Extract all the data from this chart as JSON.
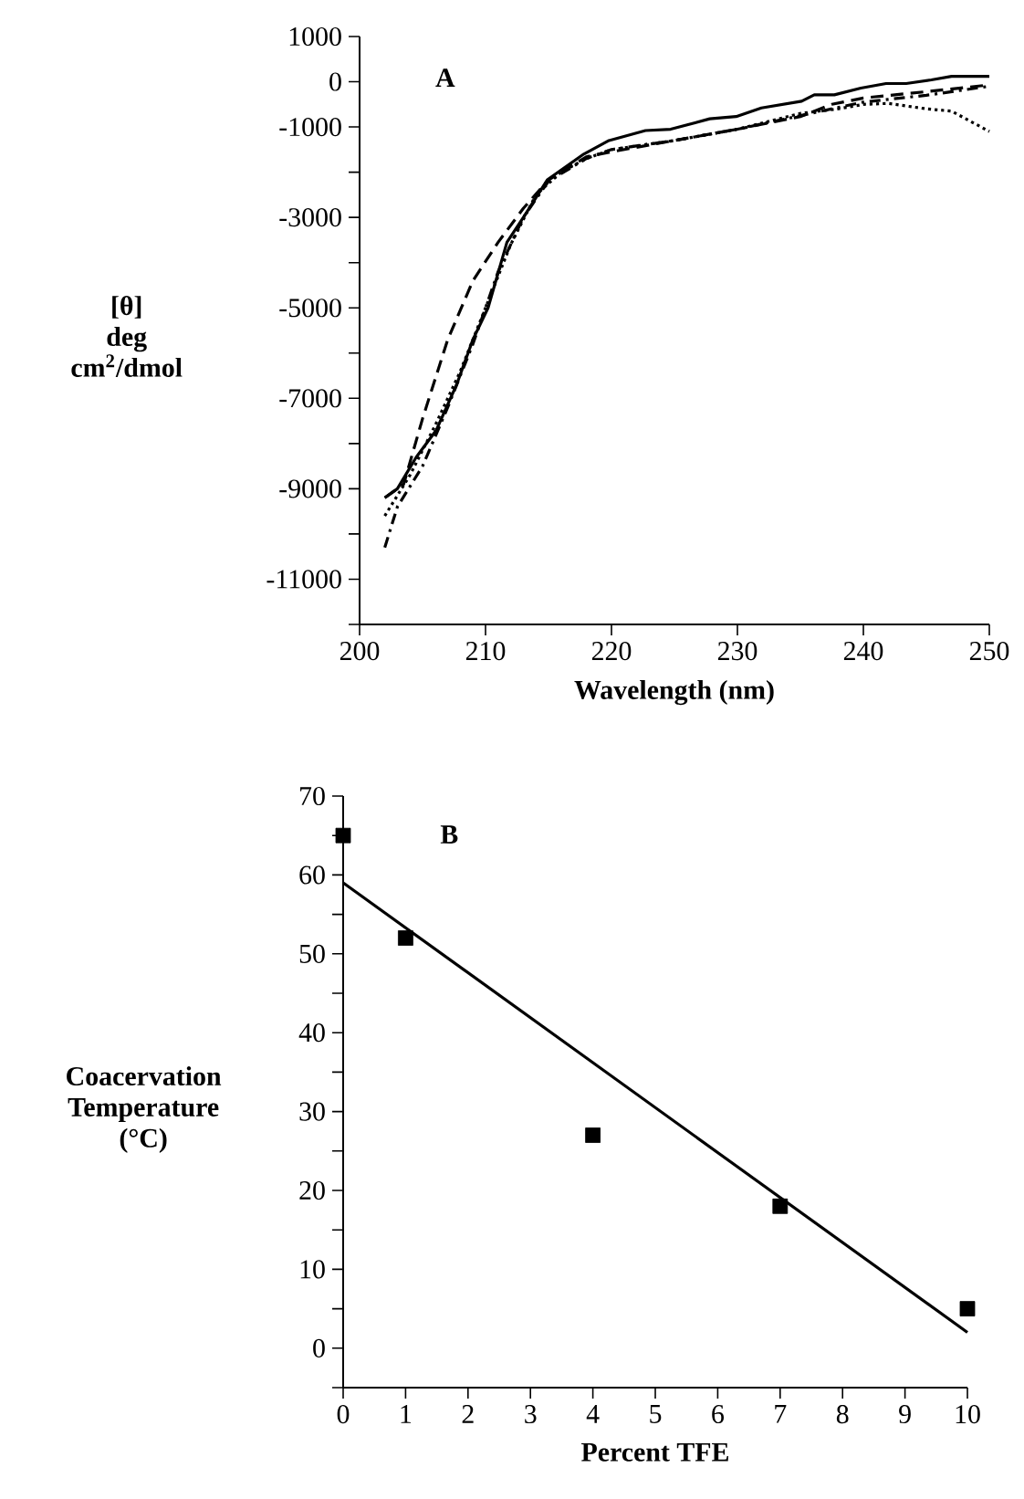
{
  "chart_data": [
    {
      "type": "line",
      "xlabel": "Wavelength (nm)",
      "ylabel": "[θ]\ndeg cm$^{2}$/dmol",
      "annotations": [
        "A"
      ],
      "xlim": [
        200,
        250
      ],
      "ylim": [
        -12000,
        1000
      ],
      "xticks": [
        200,
        210,
        220,
        230,
        240,
        250
      ],
      "yticks": [
        {
          "value": -12000,
          "label": null
        },
        -11000,
        {
          "value": -10000,
          "label": null
        },
        -9000,
        {
          "value": -8000,
          "label": null
        },
        -7000,
        {
          "value": -6000,
          "label": null
        },
        -5000,
        {
          "value": -4000,
          "label": null
        },
        -3000,
        {
          "value": -2000,
          "label": null
        },
        -1000,
        0,
        1000
      ],
      "series": [
        {
          "color": "#000000",
          "line_style": "solid",
          "x": [
            202,
            203,
            204.5,
            206.1,
            207.7,
            209,
            210.2,
            211.7,
            213.1,
            214.9,
            217.8,
            219.8,
            222.7,
            224.7,
            227.8,
            229.9,
            231.9,
            235.1,
            236.1,
            237.7,
            239.8,
            241.8,
            243.4,
            245.4,
            247,
            250
          ],
          "values": [
            -9200,
            -9000,
            -8300,
            -7700,
            -6700,
            -5700,
            -5000,
            -3550,
            -2960,
            -2170,
            -1600,
            -1300,
            -1080,
            -1050,
            -820,
            -770,
            -580,
            -430,
            -290,
            -290,
            -140,
            -40,
            -40,
            40,
            120,
            120
          ]
        },
        {
          "color": "#000000",
          "line_style": "dashed",
          "x": [
            202,
            203.5,
            205,
            207,
            209,
            211,
            213,
            215,
            218,
            220,
            225,
            230,
            235,
            237.5,
            240,
            245,
            250
          ],
          "values": [
            -9200,
            -8900,
            -7450,
            -5700,
            -4400,
            -3550,
            -2800,
            -2170,
            -1660,
            -1550,
            -1300,
            -1050,
            -770,
            -500,
            -360,
            -220,
            -70
          ]
        },
        {
          "color": "#000000",
          "line_style": "dotted",
          "x": [
            202,
            204,
            206,
            208,
            210,
            212,
            214,
            216,
            218,
            220,
            225,
            230,
            235,
            238,
            240,
            242,
            245,
            247,
            250
          ],
          "values": [
            -9600,
            -8700,
            -7600,
            -6400,
            -5000,
            -3600,
            -2500,
            -2000,
            -1700,
            -1500,
            -1300,
            -1050,
            -700,
            -600,
            -500,
            -480,
            -600,
            -650,
            -1100
          ]
        },
        {
          "color": "#000000",
          "line_style": "dashdot",
          "x": [
            202,
            203,
            205,
            207,
            209,
            211,
            213,
            215,
            218,
            220,
            225,
            230,
            235,
            240,
            245,
            250
          ],
          "values": [
            -10300,
            -9400,
            -8500,
            -7200,
            -5800,
            -4200,
            -3000,
            -2200,
            -1700,
            -1500,
            -1300,
            -1050,
            -750,
            -450,
            -300,
            -100
          ]
        }
      ]
    },
    {
      "type": "scatter",
      "xlabel": "Percent TFE",
      "ylabel": "Coacervation Temperature (°C)",
      "annotations": [
        "B"
      ],
      "xlim": [
        0,
        10
      ],
      "ylim": [
        -5,
        70
      ],
      "xticks": [
        0,
        1,
        2,
        3,
        4,
        5,
        6,
        7,
        8,
        9,
        10
      ],
      "yticks": [
        {
          "value": -5,
          "label": null
        },
        0,
        {
          "value": 5,
          "label": null
        },
        10,
        {
          "value": 15,
          "label": null
        },
        20,
        {
          "value": 25,
          "label": null
        },
        30,
        {
          "value": 35,
          "label": null
        },
        40,
        {
          "value": 45,
          "label": null
        },
        50,
        {
          "value": 55,
          "label": null
        },
        60,
        {
          "value": 65,
          "label": null
        },
        70
      ],
      "series": [
        {
          "type": "scatter",
          "color": "#000000",
          "marker": "square",
          "x": [
            0,
            1,
            4,
            7,
            10
          ],
          "values": [
            65,
            52,
            27,
            18,
            5
          ]
        },
        {
          "type": "line",
          "color": "#000000",
          "line_style": "solid",
          "x": [
            0,
            10
          ],
          "values": [
            59,
            2
          ]
        }
      ]
    }
  ]
}
